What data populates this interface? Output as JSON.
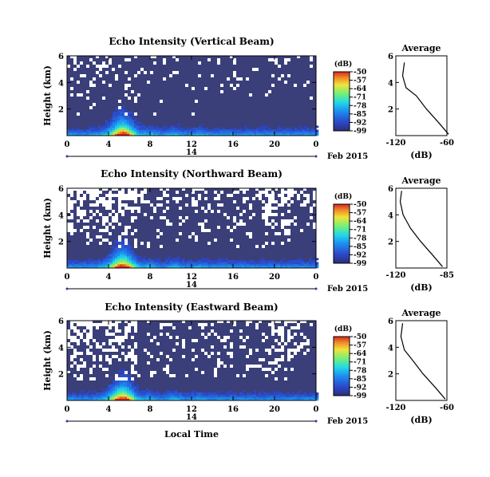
{
  "chart_data": [
    {
      "type": "heatmap",
      "title": "Echo Intensity (Vertical Beam)",
      "ylabel": "Height (km)",
      "x_ticks": [
        "0",
        "4",
        "8",
        "12",
        "16",
        "20",
        "0"
      ],
      "date_label": "14",
      "date_suffix": "Feb 2015",
      "y_ticks": [
        "6",
        "4",
        "2"
      ],
      "xlim": [
        0,
        24
      ],
      "ylim": [
        0,
        6
      ],
      "colorbar": {
        "unit": "(dB)",
        "ticks": [
          "-50",
          "-57",
          "-64",
          "-71",
          "-78",
          "-85",
          "-92",
          "-99"
        ],
        "range": [
          -99,
          -50
        ]
      },
      "white_density": 0.08,
      "average": {
        "title": "Average",
        "xlabel": "(dB)",
        "x_ticks": [
          "-120",
          "-60"
        ],
        "y_ticks": [
          "6",
          "4",
          "2"
        ],
        "xlim": [
          -120,
          -60
        ],
        "profile": [
          [
            -58,
            0.1
          ],
          [
            -70,
            1.0
          ],
          [
            -84,
            2.0
          ],
          [
            -96,
            3.0
          ],
          [
            -108,
            3.6
          ],
          [
            -112,
            4.5
          ],
          [
            -110,
            5.5
          ]
        ]
      }
    },
    {
      "type": "heatmap",
      "title": "Echo Intensity (Northward Beam)",
      "ylabel": "Height (km)",
      "x_ticks": [
        "0",
        "4",
        "8",
        "12",
        "16",
        "20",
        "0"
      ],
      "date_label": "14",
      "date_suffix": "Feb 2015",
      "y_ticks": [
        "6",
        "4",
        "2"
      ],
      "xlim": [
        0,
        24
      ],
      "ylim": [
        0,
        6
      ],
      "colorbar": {
        "unit": "(dB)",
        "ticks": [
          "-50",
          "-57",
          "-64",
          "-71",
          "-78",
          "-85",
          "-92",
          "-99"
        ],
        "range": [
          -99,
          -50
        ]
      },
      "white_density": 0.22,
      "average": {
        "title": "Average",
        "xlabel": "(dB)",
        "x_ticks": [
          "-120",
          "-85"
        ],
        "y_ticks": [
          "6",
          "4",
          "2"
        ],
        "xlim": [
          -120,
          -85
        ],
        "profile": [
          [
            -88,
            0.1
          ],
          [
            -95,
            1.0
          ],
          [
            -103,
            2.0
          ],
          [
            -110,
            3.0
          ],
          [
            -115,
            4.0
          ],
          [
            -117,
            5.0
          ],
          [
            -116,
            5.8
          ]
        ]
      }
    },
    {
      "type": "heatmap",
      "title": "Echo Intensity (Eastward Beam)",
      "ylabel": "Height (km)",
      "x_ticks": [
        "0",
        "4",
        "8",
        "12",
        "16",
        "20",
        "0"
      ],
      "date_label": "14",
      "date_suffix": "Feb 2015",
      "y_ticks": [
        "6",
        "4",
        "2"
      ],
      "xlim": [
        0,
        24
      ],
      "ylim": [
        0,
        6
      ],
      "colorbar": {
        "unit": "(dB)",
        "ticks": [
          "-50",
          "-57",
          "-64",
          "-71",
          "-78",
          "-85",
          "-92",
          "-99"
        ],
        "range": [
          -99,
          -50
        ]
      },
      "white_density": 0.2,
      "average": {
        "title": "Average",
        "xlabel": "(dB)",
        "x_ticks": [
          "-120",
          "-60"
        ],
        "y_ticks": [
          "6",
          "4",
          "2"
        ],
        "xlim": [
          -120,
          -60
        ],
        "profile": [
          [
            -62,
            0.1
          ],
          [
            -74,
            1.0
          ],
          [
            -88,
            2.0
          ],
          [
            -100,
            3.0
          ],
          [
            -110,
            3.8
          ],
          [
            -114,
            4.8
          ],
          [
            -112,
            5.8
          ]
        ]
      }
    }
  ],
  "xlabel": "Local Time",
  "colors": {
    "background": "#3a3f7a",
    "missing": "#ffffff",
    "axis": "#000000"
  }
}
